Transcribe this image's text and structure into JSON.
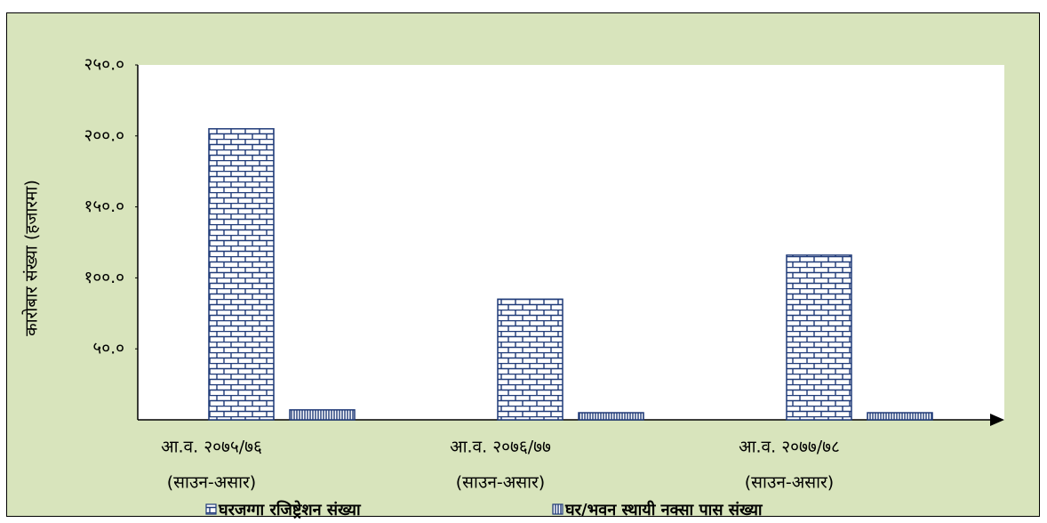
{
  "chart_data": {
    "type": "bar",
    "y_label": "कारोबार संख्या (हजारमा)",
    "categories": [
      [
        "आ.व. २०७५/७६",
        "(साउन-असार)"
      ],
      [
        "आ.व. २०७६/७७",
        "(साउन-असार)"
      ],
      [
        "आ.व. २०७७/७८",
        "(साउन-असार)"
      ]
    ],
    "series": [
      {
        "name": "घरजग्गा रजिष्ट्रेशन संख्या",
        "color": "#1f3a78",
        "values": [
          205,
          85,
          116
        ]
      },
      {
        "name": "घर/भवन स्थायी नक्सा पास संख्या",
        "color": "#1f3a78",
        "values": [
          7,
          5,
          5
        ]
      }
    ],
    "ylim": [
      0,
      250
    ],
    "yticks": [
      {
        "value": 50,
        "label": "५०.०"
      },
      {
        "value": 100,
        "label": "१००.०"
      },
      {
        "value": 150,
        "label": "१५०.०"
      },
      {
        "value": 200,
        "label": "२००.०"
      },
      {
        "value": 250,
        "label": "२५०.०"
      }
    ],
    "grid": false
  }
}
